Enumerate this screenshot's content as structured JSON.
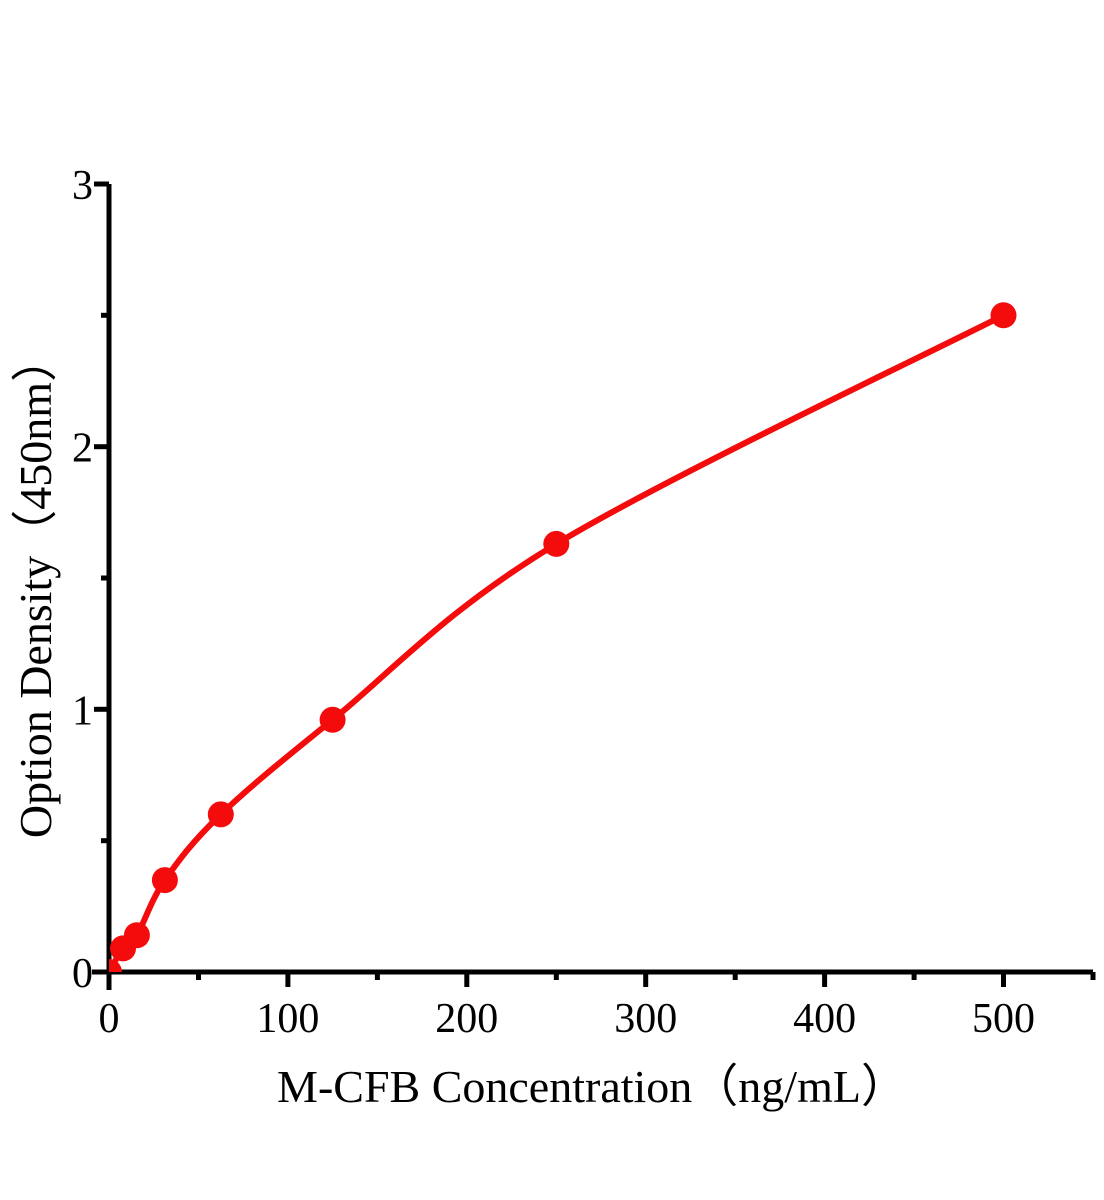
{
  "chart_data": {
    "type": "line",
    "title": "",
    "xlabel": "M-CFB Concentration（ng/mL）",
    "ylabel": "Option Density（450nm）",
    "x": [
      0,
      7.8,
      15.6,
      31.25,
      62.5,
      125,
      250,
      500
    ],
    "y": [
      0,
      0.09,
      0.14,
      0.35,
      0.6,
      0.96,
      1.63,
      2.5
    ],
    "xlim": [
      0,
      550
    ],
    "ylim": [
      0,
      3
    ],
    "x_major_ticks": [
      0,
      100,
      200,
      300,
      400,
      500
    ],
    "x_minor_ticks": [
      50,
      150,
      250,
      350,
      450,
      550
    ],
    "y_major_ticks": [
      0,
      1,
      2,
      3
    ],
    "y_minor_ticks": [
      0.5,
      1.5,
      2.5
    ],
    "grid": false,
    "legend": "none",
    "curve_style": "smooth saturating standard curve through all points",
    "marker": "filled-circle",
    "line_color": "#f40b0b",
    "marker_color": "#f40b0b",
    "axis_color": "#000000",
    "background_color": "#ffffff"
  }
}
